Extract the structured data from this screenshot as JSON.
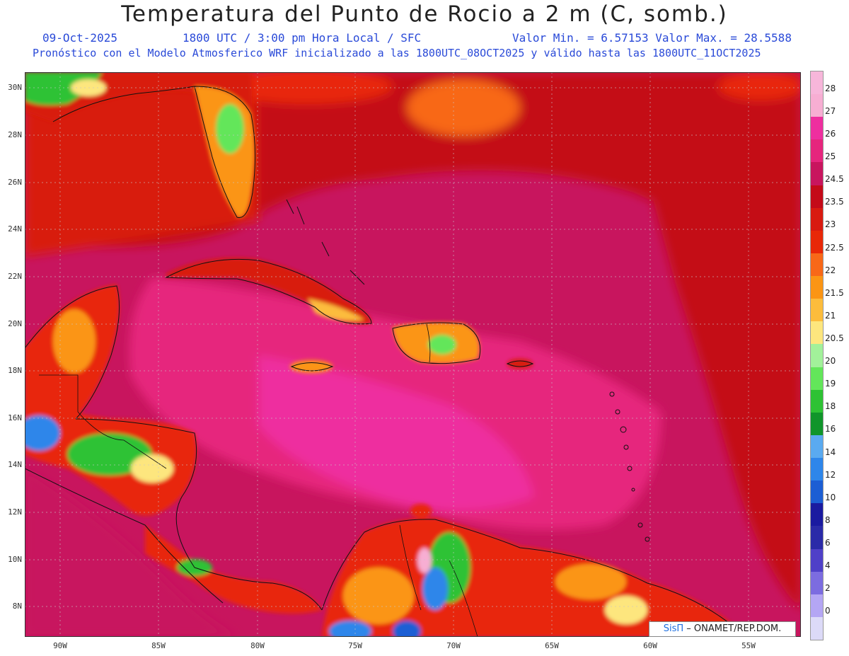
{
  "title": "Temperatura del Punto de Rocio a 2 m (C, somb.)",
  "header": {
    "date": "09-Oct-2025",
    "time": "1800 UTC / 3:00 pm Hora Local / SFC",
    "minmax": "Valor Min. = 6.57153  Valor Max. = 28.5588",
    "model": "Pronóstico con el Modelo Atmosferico WRF inicializado a las 1800UTC_08OCT2025 y válido hasta las  1800UTC_11OCT2025"
  },
  "axes": {
    "lat_labels": [
      "30N",
      "28N",
      "26N",
      "24N",
      "22N",
      "20N",
      "18N",
      "16N",
      "14N",
      "12N",
      "10N",
      "8N"
    ],
    "lon_labels": [
      "90W",
      "85W",
      "80W",
      "75W",
      "70W",
      "65W",
      "60W",
      "55W"
    ]
  },
  "colorbar": {
    "labels": [
      "28",
      "27",
      "26",
      "25",
      "24.5",
      "23.5",
      "23",
      "22.5",
      "22",
      "21.5",
      "21",
      "20.5",
      "20",
      "19",
      "18",
      "16",
      "14",
      "12",
      "10",
      "8",
      "6",
      "4",
      "2",
      "0"
    ],
    "colors": [
      "#f7aed3",
      "#ee2f9f",
      "#e6257d",
      "#c8155e",
      "#c40a19",
      "#d81a10",
      "#e82808",
      "#f86818",
      "#fb9514",
      "#fcbc3c",
      "#fde67e",
      "#a2f19a",
      "#63e65a",
      "#2ec234",
      "#10952a",
      "#5aaaf0",
      "#2e86ea",
      "#1c5ed4",
      "#1a1aa0",
      "#2a2aa8",
      "#4f40c8",
      "#7c6ce0",
      "#b4a6f4",
      "#dcdaf8"
    ]
  },
  "credit": {
    "brand": "SisΠ",
    "text": "– ONAMET/REP.DOM."
  }
}
